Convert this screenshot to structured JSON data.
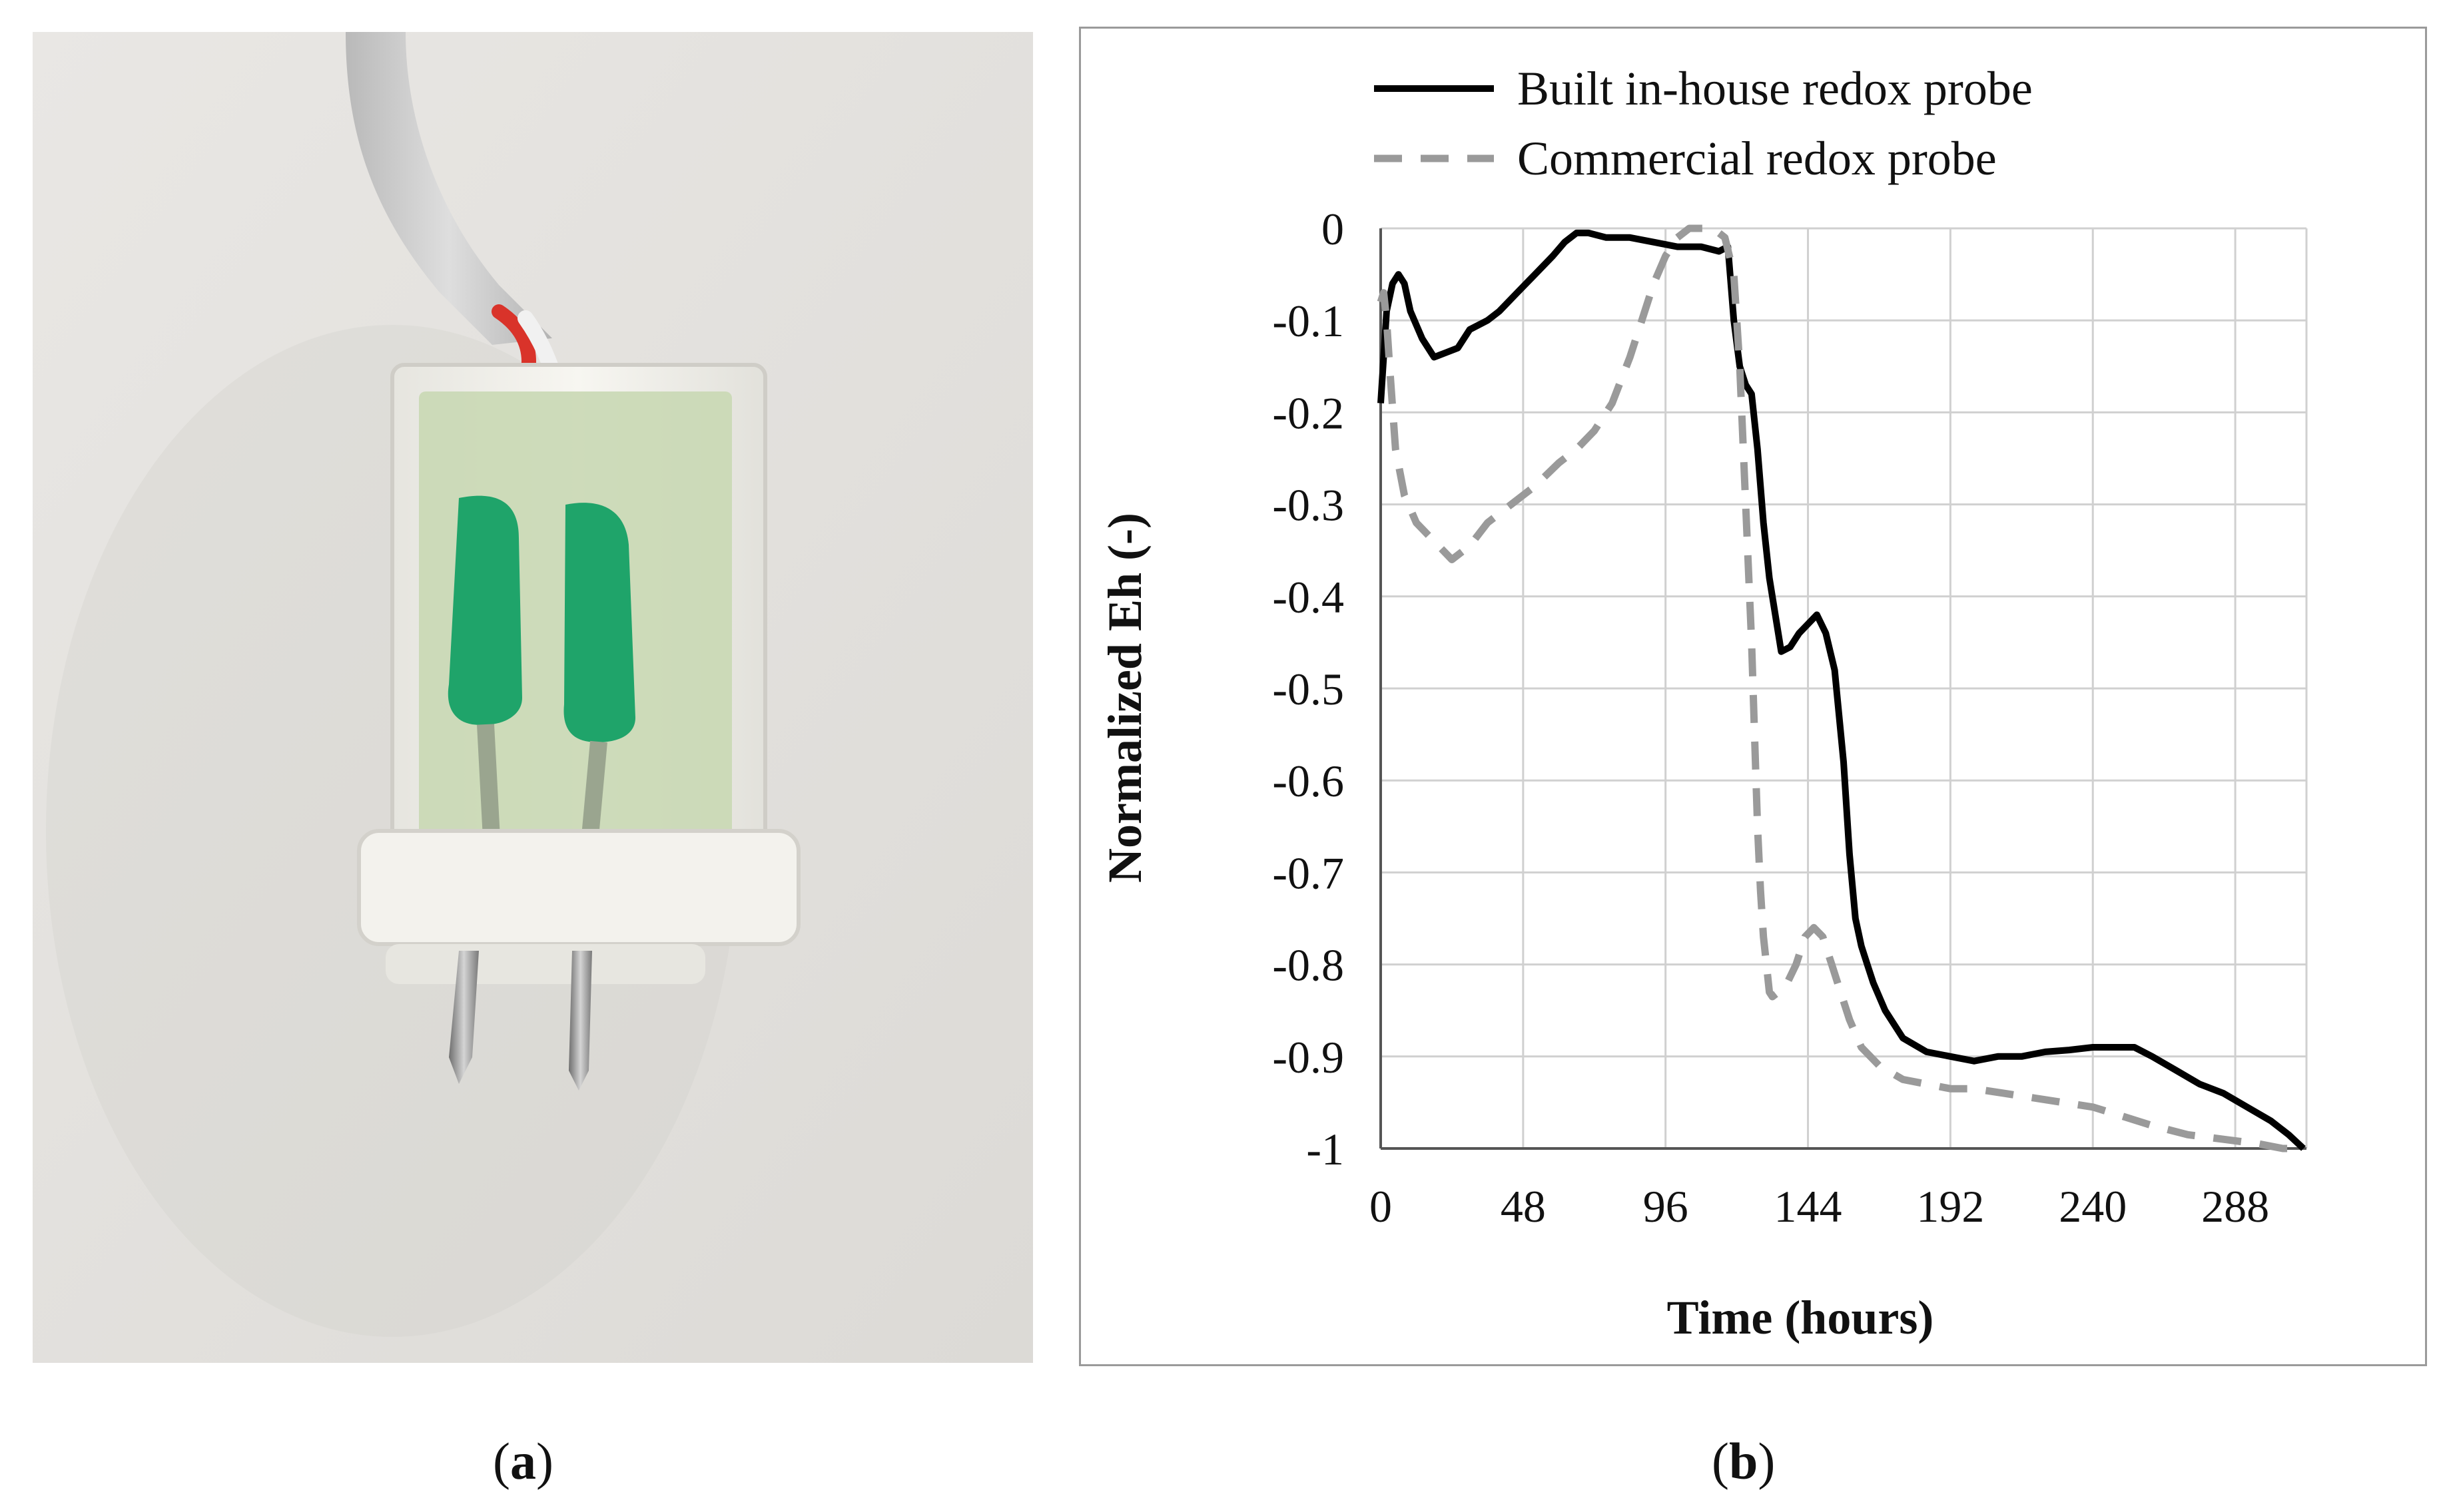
{
  "panels": {
    "a": {
      "caption": "a"
    },
    "b": {
      "caption": "b"
    }
  },
  "colors": {
    "built_in_house": "#000000",
    "commercial": "#9a9a9a",
    "grid": "#d0d0d0",
    "frame": "#9a9a9a",
    "background_photo": "#ecebea",
    "probe_body": "#f2f1ec",
    "epoxy": "#c9d8b4",
    "sealant": "#1fa46a",
    "red_wire": "#d9332a",
    "cable": "#cfcfcf"
  },
  "photo": {
    "description_icons": [
      "probe-photo"
    ]
  },
  "chart_data": {
    "type": "line",
    "title": "",
    "xlabel": "Time (hours)",
    "ylabel": "Normalized Eh (-)",
    "xlim": [
      0,
      312
    ],
    "ylim": [
      -1,
      0
    ],
    "xticks": [
      0,
      48,
      96,
      144,
      192,
      240,
      288
    ],
    "xtick_labels": [
      "0",
      "48",
      "96",
      "144",
      "192",
      "240",
      "288"
    ],
    "yticks": [
      0,
      -0.1,
      -0.2,
      -0.3,
      -0.4,
      -0.5,
      -0.6,
      -0.7,
      -0.8,
      -0.9,
      -1
    ],
    "ytick_labels": [
      "0",
      "-0.1",
      "-0.2",
      "-0.3",
      "-0.4",
      "-0.5",
      "-0.6",
      "-0.7",
      "-0.8",
      "-0.9",
      "-1"
    ],
    "grid": true,
    "legend": "top",
    "series": [
      {
        "name": "Built in-house redox probe",
        "style": "solid",
        "x": [
          0,
          2,
          4,
          6,
          8,
          10,
          14,
          18,
          22,
          26,
          30,
          36,
          40,
          46,
          52,
          58,
          62,
          66,
          70,
          76,
          84,
          92,
          100,
          108,
          114,
          117,
          119,
          121,
          123,
          125,
          127,
          129,
          131,
          133,
          135,
          138,
          141,
          144,
          147,
          150,
          153,
          156,
          158,
          160,
          162,
          164,
          166,
          170,
          176,
          184,
          192,
          200,
          208,
          216,
          224,
          232,
          240,
          248,
          254,
          260,
          268,
          276,
          284,
          292,
          300,
          306,
          311
        ],
        "y": [
          -0.19,
          -0.09,
          -0.06,
          -0.05,
          -0.06,
          -0.09,
          -0.12,
          -0.14,
          -0.135,
          -0.13,
          -0.11,
          -0.1,
          -0.09,
          -0.07,
          -0.05,
          -0.03,
          -0.015,
          -0.005,
          -0.005,
          -0.01,
          -0.01,
          -0.015,
          -0.02,
          -0.02,
          -0.025,
          -0.02,
          -0.1,
          -0.15,
          -0.17,
          -0.18,
          -0.24,
          -0.32,
          -0.38,
          -0.42,
          -0.46,
          -0.455,
          -0.44,
          -0.43,
          -0.42,
          -0.44,
          -0.48,
          -0.58,
          -0.68,
          -0.75,
          -0.78,
          -0.8,
          -0.82,
          -0.85,
          -0.88,
          -0.895,
          -0.9,
          -0.905,
          -0.9,
          -0.9,
          -0.895,
          -0.893,
          -0.89,
          -0.89,
          -0.89,
          -0.9,
          -0.915,
          -0.93,
          -0.94,
          -0.955,
          -0.97,
          -0.985,
          -1.0
        ]
      },
      {
        "name": "Commercial redox probe",
        "style": "dashed",
        "x": [
          0,
          1,
          2,
          3,
          5,
          8,
          12,
          18,
          24,
          30,
          36,
          44,
          52,
          60,
          66,
          72,
          78,
          84,
          88,
          92,
          96,
          100,
          104,
          108,
          112,
          116,
          119,
          121,
          123,
          125,
          126,
          127,
          128,
          129,
          130,
          131,
          132,
          134,
          137,
          140,
          143,
          146,
          149,
          152,
          155,
          158,
          162,
          168,
          176,
          184,
          192,
          200,
          210,
          220,
          230,
          240,
          250,
          260,
          272,
          284,
          296,
          304,
          311
        ],
        "y": [
          -0.08,
          -0.07,
          -0.1,
          -0.15,
          -0.24,
          -0.29,
          -0.32,
          -0.34,
          -0.36,
          -0.345,
          -0.32,
          -0.3,
          -0.28,
          -0.255,
          -0.24,
          -0.22,
          -0.19,
          -0.14,
          -0.1,
          -0.06,
          -0.03,
          -0.01,
          0.0,
          0.0,
          0.0,
          -0.01,
          -0.05,
          -0.15,
          -0.3,
          -0.45,
          -0.55,
          -0.65,
          -0.72,
          -0.77,
          -0.8,
          -0.83,
          -0.835,
          -0.83,
          -0.82,
          -0.8,
          -0.77,
          -0.76,
          -0.77,
          -0.8,
          -0.83,
          -0.86,
          -0.89,
          -0.91,
          -0.925,
          -0.93,
          -0.935,
          -0.935,
          -0.94,
          -0.945,
          -0.95,
          -0.955,
          -0.965,
          -0.975,
          -0.985,
          -0.99,
          -0.995,
          -1.0,
          -1.0
        ]
      }
    ]
  }
}
